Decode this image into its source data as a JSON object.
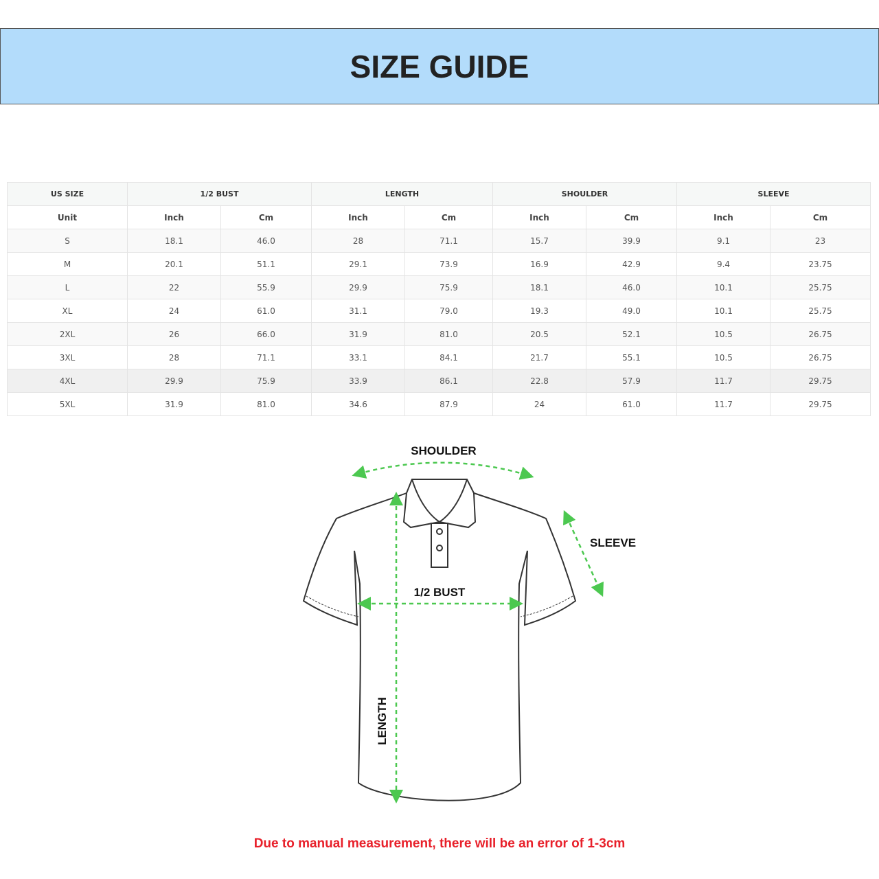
{
  "banner": {
    "title": "SIZE GUIDE"
  },
  "table": {
    "group_headers": [
      "US SIZE",
      "1/2 BUST",
      "LENGTH",
      "SHOULDER",
      "SLEEVE"
    ],
    "unit_row": [
      "Unit",
      "Inch",
      "Cm",
      "Inch",
      "Cm",
      "Inch",
      "Cm",
      "Inch",
      "Cm"
    ],
    "rows": [
      [
        "S",
        "18.1",
        "46.0",
        "28",
        "71.1",
        "15.7",
        "39.9",
        "9.1",
        "23"
      ],
      [
        "M",
        "20.1",
        "51.1",
        "29.1",
        "73.9",
        "16.9",
        "42.9",
        "9.4",
        "23.75"
      ],
      [
        "L",
        "22",
        "55.9",
        "29.9",
        "75.9",
        "18.1",
        "46.0",
        "10.1",
        "25.75"
      ],
      [
        "XL",
        "24",
        "61.0",
        "31.1",
        "79.0",
        "19.3",
        "49.0",
        "10.1",
        "25.75"
      ],
      [
        "2XL",
        "26",
        "66.0",
        "31.9",
        "81.0",
        "20.5",
        "52.1",
        "10.5",
        "26.75"
      ],
      [
        "3XL",
        "28",
        "71.1",
        "33.1",
        "84.1",
        "21.7",
        "55.1",
        "10.5",
        "26.75"
      ],
      [
        "4XL",
        "29.9",
        "75.9",
        "33.9",
        "86.1",
        "22.8",
        "57.9",
        "11.7",
        "29.75"
      ],
      [
        "5XL",
        "31.9",
        "81.0",
        "34.6",
        "87.9",
        "24",
        "61.0",
        "11.7",
        "29.75"
      ]
    ]
  },
  "diagram": {
    "labels": {
      "shoulder": "SHOULDER",
      "sleeve": "SLEEVE",
      "bust": "1/2 BUST",
      "length": "LENGTH"
    },
    "arrow_color": "#4cc850",
    "outline_color": "#333333"
  },
  "note": "Due to manual measurement, there will be an error of 1-3cm"
}
